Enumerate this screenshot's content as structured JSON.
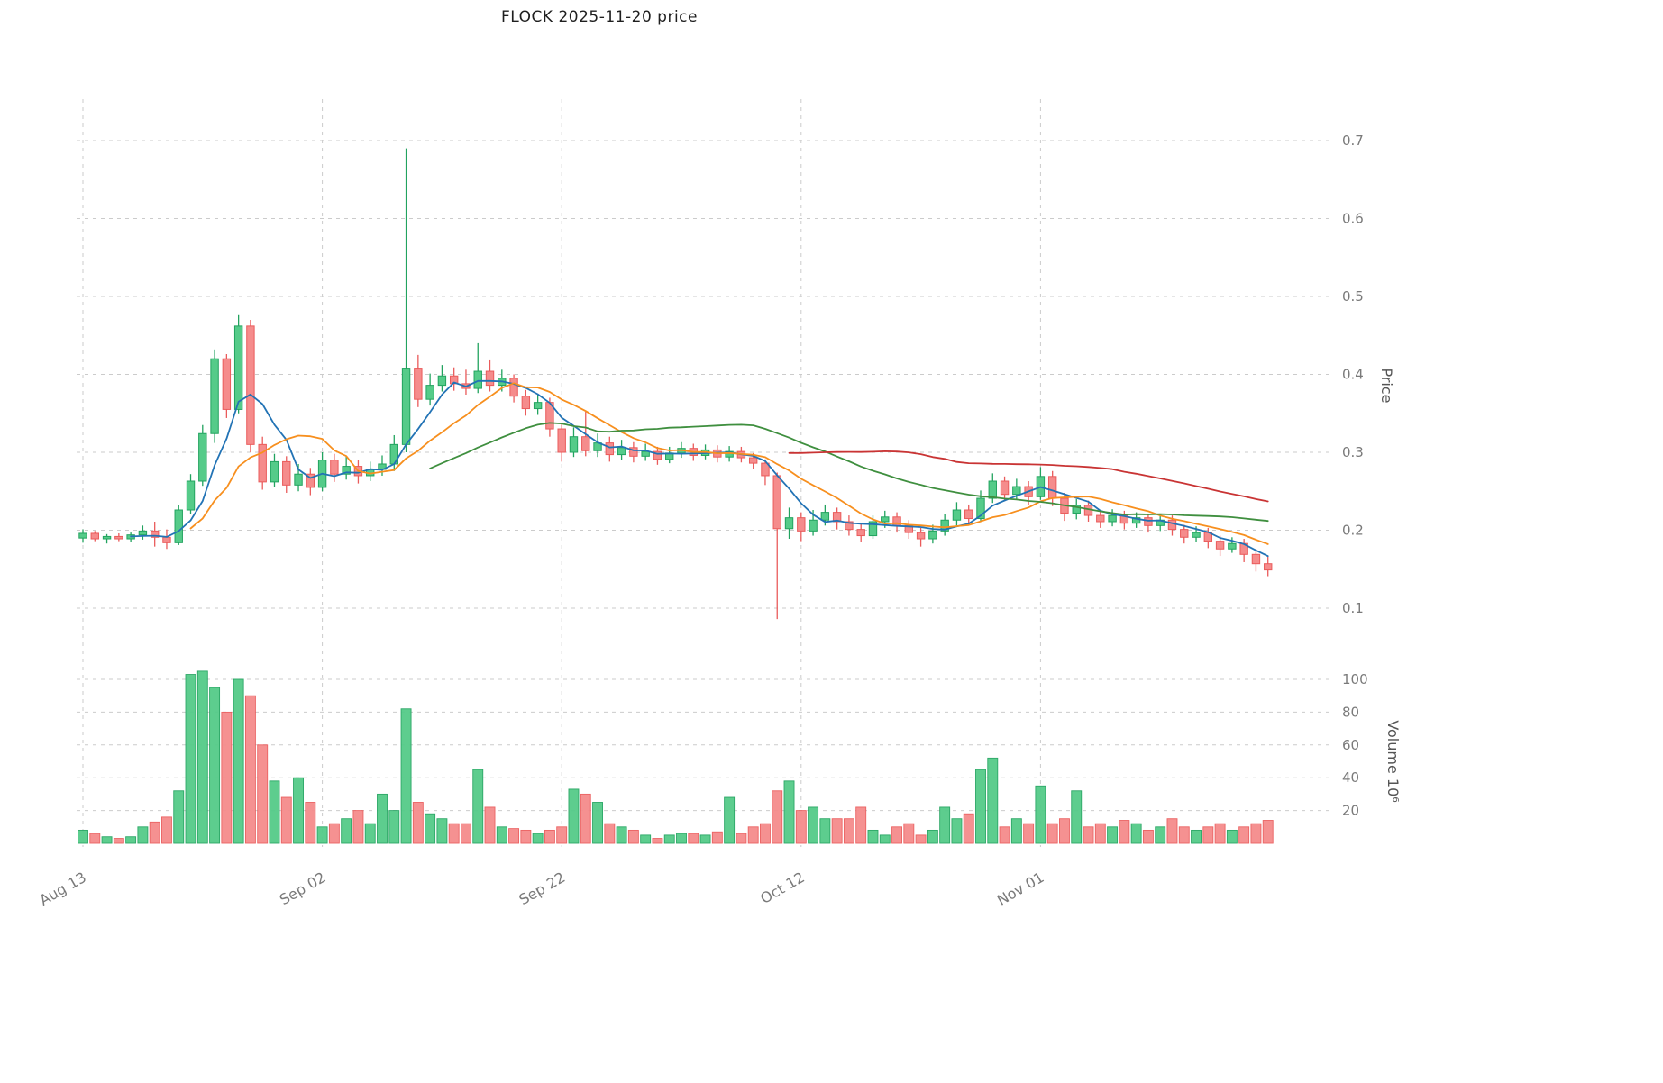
{
  "chart_data": {
    "type": "candlestick",
    "title": "FLOCK  2025-11-20  price",
    "price_axis": {
      "label": "Price",
      "ticks": [
        0.1,
        0.2,
        0.3,
        0.4,
        0.5,
        0.6,
        0.7
      ],
      "range": [
        0.08,
        0.72
      ]
    },
    "volume_axis": {
      "label": "Volume  10⁶",
      "ticks": [
        20,
        40,
        60,
        80,
        100
      ],
      "unit": "millions"
    },
    "x_ticks": [
      {
        "label": "Aug 13",
        "index": 0
      },
      {
        "label": "Sep 02",
        "index": 20
      },
      {
        "label": "Sep 22",
        "index": 40
      },
      {
        "label": "Oct 12",
        "index": 60
      },
      {
        "label": "Nov 01",
        "index": 80
      }
    ],
    "moving_averages": [
      {
        "name": "MA5",
        "window": 5,
        "color": "#2273b5"
      },
      {
        "name": "MA10",
        "window": 10,
        "color": "#f78f1e"
      },
      {
        "name": "MA30",
        "window": 30,
        "color": "#3f8f3f"
      },
      {
        "name": "MA60",
        "window": 60,
        "color": "#c93434"
      }
    ],
    "colors": {
      "up": "#55cb89",
      "up_edge": "#22a35f",
      "down": "#f58c8c",
      "down_edge": "#ea5b5b",
      "grid": "#cbcbcb",
      "tick_text": "#7a7a7a",
      "axis_title_text": "#555555",
      "background": "#ffffff"
    },
    "fields": [
      "date",
      "open",
      "high",
      "low",
      "close",
      "volume_millions"
    ],
    "ohlcv": [
      [
        "Aug 13",
        0.19,
        0.201,
        0.184,
        0.196,
        8
      ],
      [
        "Aug 14",
        0.196,
        0.199,
        0.186,
        0.189,
        6
      ],
      [
        "Aug 15",
        0.189,
        0.195,
        0.183,
        0.192,
        4
      ],
      [
        "Aug 16",
        0.192,
        0.196,
        0.186,
        0.189,
        3
      ],
      [
        "Aug 17",
        0.189,
        0.197,
        0.185,
        0.194,
        4
      ],
      [
        "Aug 18",
        0.194,
        0.206,
        0.188,
        0.199,
        10
      ],
      [
        "Aug 19",
        0.199,
        0.211,
        0.179,
        0.191,
        13
      ],
      [
        "Aug 20",
        0.191,
        0.201,
        0.176,
        0.184,
        16
      ],
      [
        "Aug 21",
        0.184,
        0.232,
        0.181,
        0.226,
        32
      ],
      [
        "Aug 22",
        0.226,
        0.272,
        0.221,
        0.263,
        103
      ],
      [
        "Aug 23",
        0.263,
        0.335,
        0.257,
        0.324,
        105
      ],
      [
        "Aug 24",
        0.324,
        0.432,
        0.312,
        0.42,
        95
      ],
      [
        "Aug 25",
        0.42,
        0.426,
        0.344,
        0.355,
        80
      ],
      [
        "Aug 26",
        0.355,
        0.476,
        0.35,
        0.462,
        100
      ],
      [
        "Aug 27",
        0.462,
        0.47,
        0.3,
        0.31,
        90
      ],
      [
        "Aug 28",
        0.31,
        0.32,
        0.252,
        0.262,
        60
      ],
      [
        "Aug 29",
        0.262,
        0.298,
        0.255,
        0.288,
        38
      ],
      [
        "Aug 30",
        0.288,
        0.295,
        0.248,
        0.258,
        28
      ],
      [
        "Aug 31",
        0.258,
        0.285,
        0.25,
        0.272,
        40
      ],
      [
        "Sep 01",
        0.272,
        0.28,
        0.245,
        0.255,
        25
      ],
      [
        "Sep 02",
        0.255,
        0.3,
        0.25,
        0.29,
        10
      ],
      [
        "Sep 03",
        0.29,
        0.298,
        0.262,
        0.272,
        12
      ],
      [
        "Sep 04",
        0.272,
        0.295,
        0.265,
        0.282,
        15
      ],
      [
        "Sep 05",
        0.282,
        0.29,
        0.26,
        0.27,
        20
      ],
      [
        "Sep 06",
        0.27,
        0.288,
        0.263,
        0.278,
        12
      ],
      [
        "Sep 07",
        0.278,
        0.296,
        0.27,
        0.285,
        30
      ],
      [
        "Sep 08",
        0.285,
        0.322,
        0.276,
        0.31,
        20
      ],
      [
        "Sep 09",
        0.31,
        0.69,
        0.3,
        0.408,
        82
      ],
      [
        "Sep 10",
        0.408,
        0.425,
        0.358,
        0.368,
        25
      ],
      [
        "Sep 11",
        0.368,
        0.401,
        0.36,
        0.386,
        18
      ],
      [
        "Sep 12",
        0.386,
        0.412,
        0.378,
        0.398,
        15
      ],
      [
        "Sep 13",
        0.398,
        0.409,
        0.379,
        0.388,
        12
      ],
      [
        "Sep 14",
        0.388,
        0.406,
        0.374,
        0.382,
        12
      ],
      [
        "Sep 15",
        0.382,
        0.44,
        0.376,
        0.404,
        45
      ],
      [
        "Sep 16",
        0.404,
        0.418,
        0.378,
        0.386,
        22
      ],
      [
        "Sep 17",
        0.386,
        0.406,
        0.378,
        0.395,
        10
      ],
      [
        "Sep 18",
        0.395,
        0.4,
        0.364,
        0.372,
        9
      ],
      [
        "Sep 19",
        0.372,
        0.38,
        0.347,
        0.356,
        8
      ],
      [
        "Sep 20",
        0.356,
        0.374,
        0.348,
        0.364,
        6
      ],
      [
        "Sep 21",
        0.364,
        0.37,
        0.32,
        0.33,
        8
      ],
      [
        "Sep 22",
        0.33,
        0.338,
        0.288,
        0.3,
        10
      ],
      [
        "Sep 23",
        0.3,
        0.332,
        0.294,
        0.32,
        33
      ],
      [
        "Sep 24",
        0.32,
        0.352,
        0.295,
        0.302,
        30
      ],
      [
        "Sep 25",
        0.302,
        0.324,
        0.294,
        0.312,
        25
      ],
      [
        "Sep 26",
        0.312,
        0.32,
        0.288,
        0.297,
        12
      ],
      [
        "Sep 27",
        0.297,
        0.316,
        0.29,
        0.306,
        10
      ],
      [
        "Sep 28",
        0.306,
        0.313,
        0.287,
        0.295,
        8
      ],
      [
        "Sep 29",
        0.295,
        0.311,
        0.289,
        0.301,
        5
      ],
      [
        "Sep 30",
        0.301,
        0.307,
        0.284,
        0.291,
        3
      ],
      [
        "Oct 01",
        0.291,
        0.307,
        0.286,
        0.299,
        5
      ],
      [
        "Oct 02",
        0.299,
        0.313,
        0.293,
        0.305,
        6
      ],
      [
        "Oct 03",
        0.305,
        0.311,
        0.289,
        0.296,
        6
      ],
      [
        "Oct 04",
        0.296,
        0.31,
        0.291,
        0.303,
        5
      ],
      [
        "Oct 05",
        0.303,
        0.309,
        0.287,
        0.294,
        7
      ],
      [
        "Oct 06",
        0.294,
        0.308,
        0.288,
        0.301,
        28
      ],
      [
        "Oct 07",
        0.301,
        0.307,
        0.287,
        0.293,
        6
      ],
      [
        "Oct 08",
        0.293,
        0.299,
        0.279,
        0.286,
        10
      ],
      [
        "Oct 09",
        0.286,
        0.291,
        0.258,
        0.27,
        12
      ],
      [
        "Oct 10",
        0.27,
        0.274,
        0.086,
        0.202,
        32
      ],
      [
        "Oct 11",
        0.202,
        0.229,
        0.189,
        0.216,
        38
      ],
      [
        "Oct 12",
        0.216,
        0.223,
        0.186,
        0.199,
        20
      ],
      [
        "Oct 13",
        0.199,
        0.226,
        0.193,
        0.213,
        22
      ],
      [
        "Oct 14",
        0.213,
        0.233,
        0.206,
        0.223,
        15
      ],
      [
        "Oct 15",
        0.223,
        0.229,
        0.201,
        0.211,
        15
      ],
      [
        "Oct 16",
        0.211,
        0.219,
        0.193,
        0.201,
        15
      ],
      [
        "Oct 17",
        0.201,
        0.209,
        0.185,
        0.193,
        22
      ],
      [
        "Oct 18",
        0.193,
        0.219,
        0.189,
        0.211,
        8
      ],
      [
        "Oct 19",
        0.211,
        0.225,
        0.203,
        0.217,
        5
      ],
      [
        "Oct 20",
        0.217,
        0.223,
        0.197,
        0.206,
        10
      ],
      [
        "Oct 21",
        0.206,
        0.213,
        0.189,
        0.197,
        12
      ],
      [
        "Oct 22",
        0.197,
        0.203,
        0.179,
        0.189,
        5
      ],
      [
        "Oct 23",
        0.189,
        0.207,
        0.183,
        0.199,
        8
      ],
      [
        "Oct 24",
        0.199,
        0.221,
        0.193,
        0.213,
        22
      ],
      [
        "Oct 25",
        0.213,
        0.236,
        0.206,
        0.226,
        15
      ],
      [
        "Oct 26",
        0.226,
        0.233,
        0.207,
        0.215,
        18
      ],
      [
        "Oct 27",
        0.215,
        0.251,
        0.211,
        0.241,
        45
      ],
      [
        "Oct 28",
        0.241,
        0.273,
        0.235,
        0.263,
        52
      ],
      [
        "Oct 29",
        0.263,
        0.269,
        0.237,
        0.246,
        10
      ],
      [
        "Oct 30",
        0.246,
        0.266,
        0.239,
        0.256,
        15
      ],
      [
        "Oct 31",
        0.256,
        0.263,
        0.233,
        0.243,
        12
      ],
      [
        "Nov 01",
        0.243,
        0.281,
        0.239,
        0.269,
        35
      ],
      [
        "Nov 02",
        0.269,
        0.276,
        0.231,
        0.241,
        12
      ],
      [
        "Nov 03",
        0.241,
        0.248,
        0.212,
        0.222,
        15
      ],
      [
        "Nov 04",
        0.222,
        0.24,
        0.214,
        0.232,
        32
      ],
      [
        "Nov 05",
        0.232,
        0.238,
        0.211,
        0.219,
        10
      ],
      [
        "Nov 06",
        0.219,
        0.226,
        0.203,
        0.211,
        12
      ],
      [
        "Nov 07",
        0.211,
        0.227,
        0.205,
        0.219,
        10
      ],
      [
        "Nov 08",
        0.219,
        0.225,
        0.201,
        0.209,
        14
      ],
      [
        "Nov 09",
        0.209,
        0.223,
        0.203,
        0.216,
        12
      ],
      [
        "Nov 10",
        0.216,
        0.221,
        0.197,
        0.206,
        8
      ],
      [
        "Nov 11",
        0.206,
        0.221,
        0.199,
        0.213,
        10
      ],
      [
        "Nov 12",
        0.213,
        0.219,
        0.193,
        0.201,
        15
      ],
      [
        "Nov 13",
        0.201,
        0.207,
        0.183,
        0.191,
        10
      ],
      [
        "Nov 14",
        0.191,
        0.205,
        0.185,
        0.197,
        8
      ],
      [
        "Nov 15",
        0.197,
        0.203,
        0.177,
        0.186,
        10
      ],
      [
        "Nov 16",
        0.186,
        0.193,
        0.167,
        0.176,
        12
      ],
      [
        "Nov 17",
        0.176,
        0.191,
        0.171,
        0.183,
        8
      ],
      [
        "Nov 18",
        0.183,
        0.189,
        0.159,
        0.169,
        10
      ],
      [
        "Nov 19",
        0.169,
        0.176,
        0.147,
        0.157,
        12
      ],
      [
        "Nov 20",
        0.157,
        0.166,
        0.141,
        0.149,
        14
      ]
    ]
  }
}
